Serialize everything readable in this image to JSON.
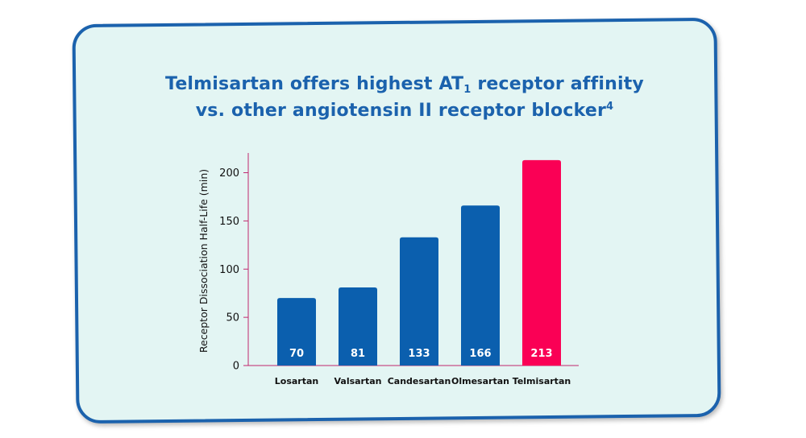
{
  "title": {
    "line1_before": "Telmisartan offers highest AT",
    "line1_sub": "1",
    "line1_after": " receptor affinity",
    "line2": "vs. other angiotensin II receptor blocker",
    "line2_sup": "4"
  },
  "colors": {
    "card_bg": "#e3f5f3",
    "card_border": "#1b62ad",
    "title": "#1b62ad",
    "bar_default": "#0b5fae",
    "bar_highlight": "#fa0055",
    "axis": "#c0286e",
    "value_label": "#ffffff"
  },
  "chart_data": {
    "type": "bar",
    "title": "",
    "xlabel": "",
    "ylabel": "Receptor Dissociation Half-Life (min)",
    "ylim": [
      0,
      220
    ],
    "yticks": [
      0,
      50,
      100,
      150,
      200
    ],
    "categories": [
      "Losartan",
      "Valsartan",
      "Candesartan",
      "Olmesartan",
      "Telmisartan"
    ],
    "values": [
      70,
      81,
      133,
      166,
      213
    ],
    "value_labels": [
      "70",
      "81",
      "133",
      "166",
      "213"
    ],
    "highlight": "Telmisartan",
    "grid": false,
    "legend": "none"
  }
}
